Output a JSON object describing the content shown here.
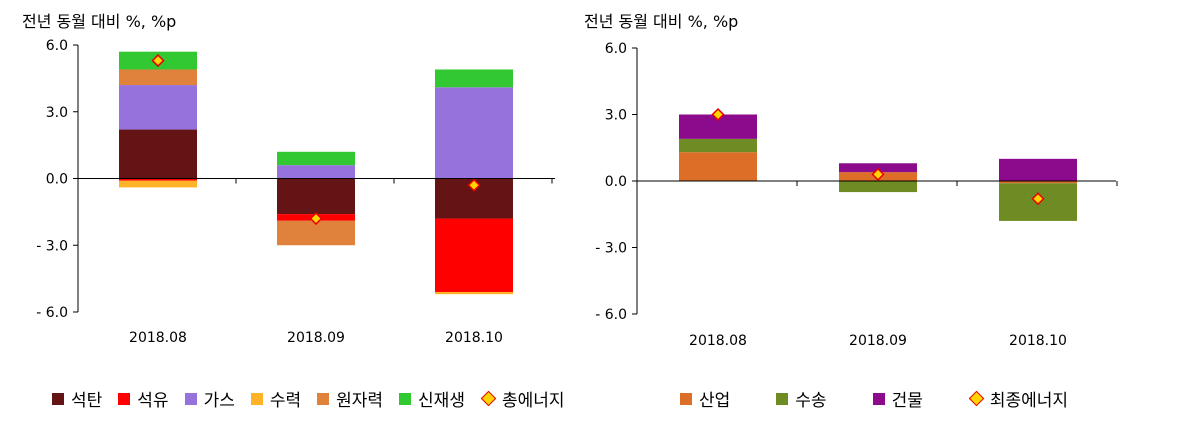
{
  "panels": [
    {
      "unit_label": "전년 동월 대비 %, %p",
      "chart_data": {
        "type": "bar",
        "stacked": true,
        "categories": [
          "2018.08",
          "2018.09",
          "2018.10"
        ],
        "ylim": [
          -6.0,
          6.0
        ],
        "yticks": [
          6.0,
          3.0,
          0.0,
          -3.0,
          -6.0
        ],
        "ytick_labels": [
          "6.0",
          "3.0",
          "0.0",
          "- 3.0",
          "- 6.0"
        ],
        "series": [
          {
            "name": "석탄",
            "color": "#641414",
            "values": [
              2.2,
              -1.6,
              -1.8
            ]
          },
          {
            "name": "석유",
            "color": "#ff0000",
            "values": [
              -0.1,
              -0.3,
              -3.3
            ]
          },
          {
            "name": "가스",
            "color": "#9673dc",
            "values": [
              2.0,
              0.6,
              4.1
            ]
          },
          {
            "name": "수력",
            "color": "#ffb428",
            "values": [
              -0.3,
              0.0,
              -0.1
            ]
          },
          {
            "name": "원자력",
            "color": "#e1823c",
            "values": [
              0.7,
              -1.1,
              0.0
            ]
          },
          {
            "name": "신재생",
            "color": "#32c832",
            "values": [
              0.8,
              0.6,
              0.8
            ]
          }
        ],
        "total": {
          "name": "총에너지",
          "values": [
            5.3,
            -1.8,
            -0.3
          ]
        }
      }
    },
    {
      "unit_label": "전년 동월 대비 %, %p",
      "chart_data": {
        "type": "bar",
        "stacked": true,
        "categories": [
          "2018.08",
          "2018.09",
          "2018.10"
        ],
        "ylim": [
          -6.0,
          6.0
        ],
        "yticks": [
          6.0,
          3.0,
          0.0,
          -3.0,
          -6.0
        ],
        "ytick_labels": [
          "6.0",
          "3.0",
          "0.0",
          "- 3.0",
          "- 6.0"
        ],
        "series": [
          {
            "name": "산업",
            "color": "#dc6e28",
            "values": [
              1.3,
              0.4,
              -0.1
            ]
          },
          {
            "name": "수송",
            "color": "#6e8c23",
            "values": [
              0.6,
              -0.5,
              -1.7
            ]
          },
          {
            "name": "건물",
            "color": "#8c0a8c",
            "values": [
              1.1,
              0.4,
              1.0
            ]
          }
        ],
        "total": {
          "name": "최종에너지",
          "values": [
            3.0,
            0.3,
            -0.8
          ]
        }
      }
    }
  ]
}
